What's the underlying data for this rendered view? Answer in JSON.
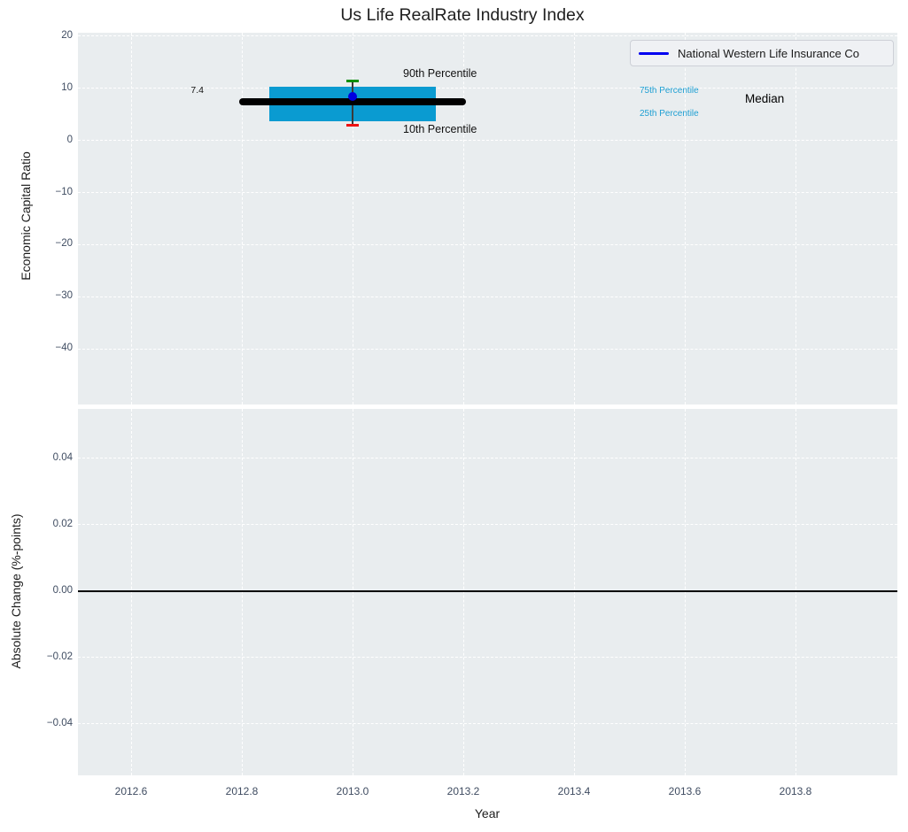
{
  "title": "Us Life RealRate Industry Index",
  "legend": {
    "label": "National Western Life Insurance Co"
  },
  "annotations": {
    "median_value": "7.4",
    "p90": "90th Percentile",
    "p10": "10th Percentile",
    "p75": "75th Percentile",
    "p25": "25th Percentile",
    "median": "Median"
  },
  "colors": {
    "box_fill": "#0a9bd1",
    "median_line": "#000000",
    "whisker": "#3a3a3a",
    "p90_cap": "#0a8f0a",
    "p10_cap": "#ee1111",
    "company_marker": "#0000e0",
    "legend_line": "#0000f0",
    "percentile_text": "#1e9fd3",
    "axes_background": "#e9edef",
    "grid": "#ffffff",
    "zero_line": "#000000",
    "tick_text": "#3f4c61"
  },
  "chart_data": [
    {
      "type": "boxplot",
      "title": "Us Life RealRate Industry Index",
      "xlabel": "Year",
      "ylabel": "Economic Capital Ratio",
      "legend": [
        "National Western Life Insurance Co"
      ],
      "legend_position": "upper right",
      "grid": "white dashed on light gray",
      "x": 2013.0,
      "values": {
        "p10": 2.9,
        "p25": 3.6,
        "median": 7.4,
        "p75": 10.3,
        "p90": 11.4,
        "company": 8.4
      },
      "median_label": "7.4",
      "median_line_x": [
        2012.795,
        2013.205
      ],
      "box_x": [
        2012.85,
        2013.15
      ],
      "cap_half_width": 0.0115,
      "whisker_x": 2013.0,
      "x_ticks": [
        2012.6,
        2012.8,
        2013.0,
        2013.2,
        2013.4,
        2013.6,
        2013.8
      ],
      "x_tick_labels": [
        "2012.6",
        "2012.8",
        "2013.0",
        "2013.2",
        "2013.4",
        "2013.6",
        "2013.8"
      ],
      "y_ticks": [
        20,
        10,
        0,
        -10,
        -20,
        -30,
        -40
      ],
      "y_tick_labels": [
        "20",
        "10",
        "0",
        "−10",
        "−20",
        "−30",
        "−40"
      ],
      "xlim": [
        2012.504,
        2013.984
      ],
      "ylim": [
        -50.6,
        20.6
      ]
    },
    {
      "type": "line",
      "xlabel": "Year",
      "ylabel": "Absolute Change (%-points)",
      "zero_line_y": 0.0,
      "x_ticks": [
        2012.6,
        2012.8,
        2013.0,
        2013.2,
        2013.4,
        2013.6,
        2013.8
      ],
      "y_ticks": [
        0.04,
        0.02,
        0.0,
        -0.02,
        -0.04
      ],
      "y_tick_labels": [
        "0.04",
        "0.02",
        "0.00",
        "−0.02",
        "−0.04"
      ],
      "xlim": [
        2012.504,
        2013.984
      ],
      "ylim": [
        -0.0555,
        0.0549
      ]
    }
  ]
}
